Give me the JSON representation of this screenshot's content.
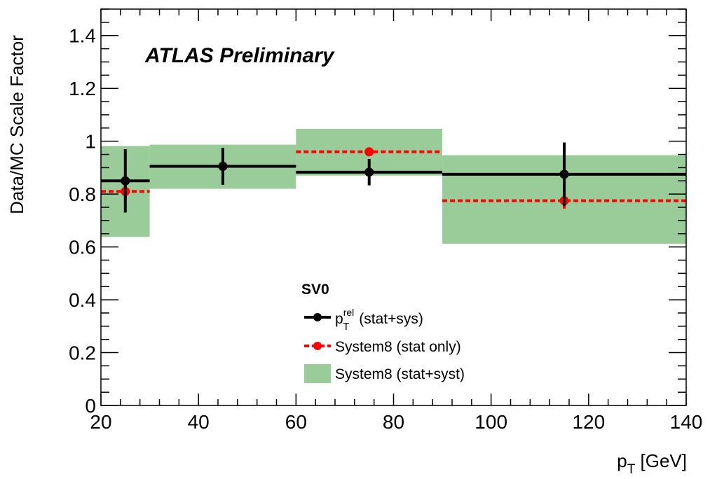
{
  "chart_data": {
    "type": "scatter",
    "annotation": "ATLAS Preliminary",
    "xlabel_main": "p",
    "xlabel_sub": "T",
    "xlabel_unit": " [GeV]",
    "ylabel": "Data/MC Scale Factor",
    "xlim": [
      20,
      140
    ],
    "ylim": [
      0,
      1.5
    ],
    "x_ticks": [
      20,
      40,
      60,
      80,
      100,
      120,
      140
    ],
    "y_ticks": [
      0,
      0.2,
      0.4,
      0.6,
      0.8,
      1,
      1.2,
      1.4
    ],
    "y_tick_labels": [
      "0",
      "0.2",
      "0.4",
      "0.6",
      "0.8",
      "1",
      "1.2",
      "1.4"
    ],
    "legend_title": "SV0",
    "legend_placement": "bottom-center",
    "series": [
      {
        "name_main": "p",
        "name_sup": "rel",
        "name_sub": "T",
        "name_rest": " (stat+sys)",
        "color": "#000000",
        "line_style": "solid",
        "points": [
          {
            "bin": [
              20,
              30
            ],
            "x": 25,
            "y": 0.85,
            "err_low": 0.12,
            "err_high": 0.12
          },
          {
            "bin": [
              30,
              60
            ],
            "x": 45,
            "y": 0.905,
            "err_low": 0.07,
            "err_high": 0.07
          },
          {
            "bin": [
              60,
              90
            ],
            "x": 75,
            "y": 0.883,
            "err_low": 0.05,
            "err_high": 0.05
          },
          {
            "bin": [
              90,
              140
            ],
            "x": 115,
            "y": 0.875,
            "err_low": 0.12,
            "err_high": 0.12
          }
        ]
      },
      {
        "name": "System8 (stat only)",
        "color": "#ff0000",
        "line_style": "dashed",
        "points": [
          {
            "bin": [
              20,
              30
            ],
            "x": 25,
            "y": 0.81,
            "err_low": 0.03,
            "err_high": 0.03
          },
          {
            "bin": [
              30,
              60
            ],
            "x": 45,
            "y": 0.905,
            "err_low": 0.015,
            "err_high": 0.015
          },
          {
            "bin": [
              60,
              90
            ],
            "x": 75,
            "y": 0.96,
            "err_low": 0.015,
            "err_high": 0.015
          },
          {
            "bin": [
              90,
              140
            ],
            "x": 115,
            "y": 0.775,
            "err_low": 0.03,
            "err_high": 0.03
          }
        ]
      },
      {
        "name": "System8 (stat+syst)",
        "color": "#99cc99",
        "style": "band",
        "bands": [
          {
            "bin": [
              20,
              30
            ],
            "y_low": 0.638,
            "y_high": 0.982
          },
          {
            "bin": [
              30,
              60
            ],
            "y_low": 0.82,
            "y_high": 0.987
          },
          {
            "bin": [
              60,
              90
            ],
            "y_low": 0.87,
            "y_high": 1.047
          },
          {
            "bin": [
              90,
              140
            ],
            "y_low": 0.612,
            "y_high": 0.947
          }
        ]
      }
    ]
  }
}
